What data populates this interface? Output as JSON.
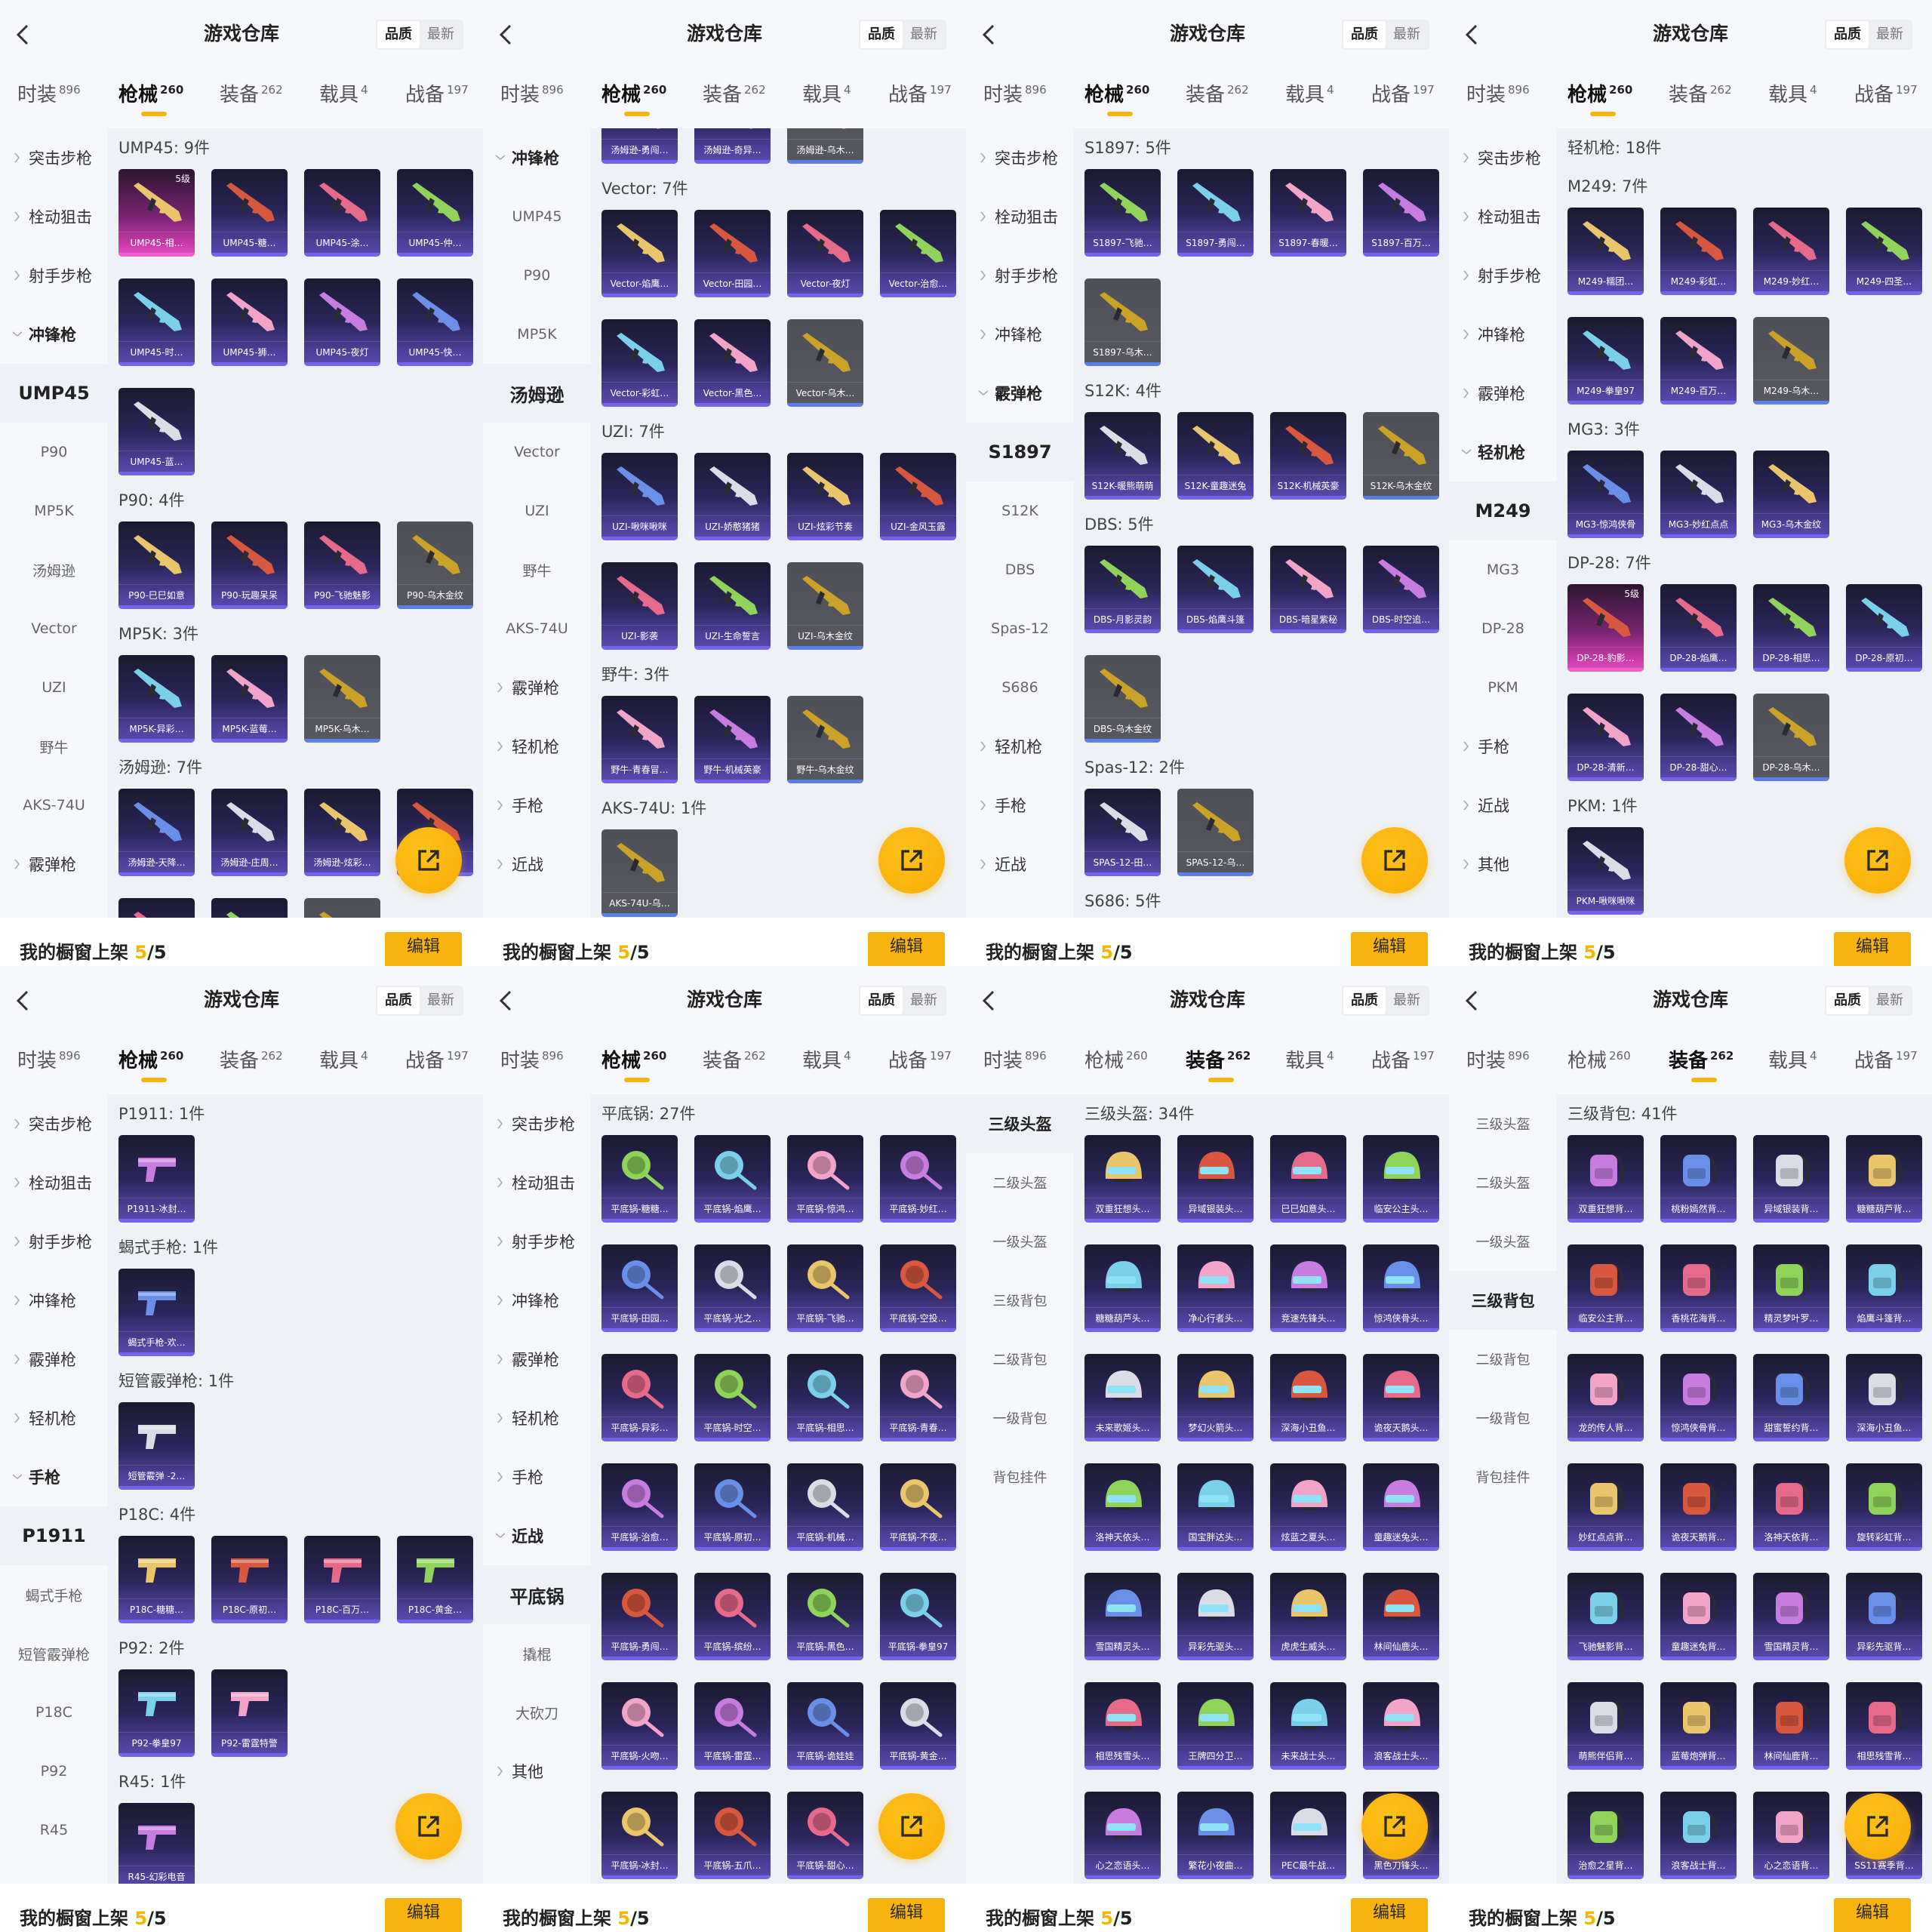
{
  "app": {
    "title": "游戏仓库",
    "sort_options": [
      "品质",
      "最新"
    ],
    "sort_active": 0,
    "tabs": [
      {
        "label": "时装",
        "count": "896"
      },
      {
        "label": "枪械",
        "count": "260"
      },
      {
        "label": "装备",
        "count": "262"
      },
      {
        "label": "载具",
        "count": "4"
      },
      {
        "label": "战备",
        "count": "197"
      }
    ],
    "showcase": {
      "label": "我的橱窗上架 ",
      "count": "5",
      "total": "/5"
    },
    "edit_label": "编辑",
    "colors": {
      "accent": "#f8b40c",
      "card_epic": "#2a2559",
      "card_gray": "#54555d",
      "card_legendary": "#c93aa8",
      "content_bg": "#eef1f5"
    }
  },
  "panels": [
    {
      "active_tab": 1,
      "sidebar": [
        {
          "label": "突击步枪",
          "type": "group"
        },
        {
          "label": "栓动狙击",
          "type": "group"
        },
        {
          "label": "射手步枪",
          "type": "group"
        },
        {
          "label": "冲锋枪",
          "type": "open"
        },
        {
          "label": "UMP45",
          "type": "selected"
        },
        {
          "label": "P90"
        },
        {
          "label": "MP5K"
        },
        {
          "label": "汤姆逊"
        },
        {
          "label": "Vector"
        },
        {
          "label": "UZI"
        },
        {
          "label": "野牛"
        },
        {
          "label": "AKS-74U"
        },
        {
          "label": "霰弹枪",
          "type": "group"
        }
      ],
      "icon": "gun-icon",
      "sections": [
        {
          "title": "UMP45: 9件",
          "items": [
            {
              "name": "UMP45-相…",
              "tier": "legendary",
              "grade": "5级"
            },
            "UMP45-糖…",
            "UMP45-涂…",
            "UMP45-仲…",
            "UMP45-时…",
            "UMP45-狮…",
            "UMP45-夜灯",
            "UMP45-快…",
            "UMP45-蓝…"
          ]
        },
        {
          "title": "P90: 4件",
          "items": [
            "P90-巳巳如意",
            "P90-玩趣呆呆",
            "P90-飞驰魅影",
            {
              "name": "P90-乌木金纹",
              "tier": "gray"
            }
          ]
        },
        {
          "title": "MP5K: 3件",
          "items": [
            "MP5K-异彩…",
            "MP5K-蓝莓…",
            {
              "name": "MP5K-乌木…",
              "tier": "gray"
            }
          ]
        },
        {
          "title": "汤姆逊: 7件",
          "items": [
            "汤姆逊-天降…",
            "汤姆逊-庄周…",
            "汤姆逊-炫彩…",
            "",
            "",
            "",
            {
              "name": "",
              "tier": "gray"
            }
          ]
        }
      ]
    },
    {
      "active_tab": 1,
      "sidebar": [
        {
          "label": "冲锋枪",
          "type": "open"
        },
        {
          "label": "UMP45"
        },
        {
          "label": "P90"
        },
        {
          "label": "MP5K"
        },
        {
          "label": "汤姆逊",
          "type": "selected"
        },
        {
          "label": "Vector"
        },
        {
          "label": "UZI"
        },
        {
          "label": "野牛"
        },
        {
          "label": "AKS-74U"
        },
        {
          "label": "霰弹枪",
          "type": "group"
        },
        {
          "label": "轻机枪",
          "type": "group"
        },
        {
          "label": "手枪",
          "type": "group"
        },
        {
          "label": "近战",
          "type": "group"
        }
      ],
      "icon": "gun-icon",
      "sections": [
        {
          "items": [
            "汤姆逊-勇闯…",
            "汤姆逊-奇异…",
            {
              "name": "汤姆逊-乌木…",
              "tier": "gray"
            }
          ]
        },
        {
          "title": "Vector: 7件",
          "items": [
            "Vector-焰鹰…",
            "Vector-田园…",
            "Vector-夜灯",
            "Vector-治愈…",
            "Vector-彩虹…",
            "Vector-黑色…",
            {
              "name": "Vector-乌木…",
              "tier": "gray"
            }
          ]
        },
        {
          "title": "UZI: 7件",
          "items": [
            "UZI-啾咪啾咪",
            "UZI-娇憨猪猪",
            "UZI-炫彩节奏",
            "UZI-金风玉露",
            "UZI-影袭",
            "UZI-生命誓言",
            {
              "name": "UZI-乌木金纹",
              "tier": "gray"
            }
          ]
        },
        {
          "title": "野牛: 3件",
          "items": [
            "野牛-青春冒…",
            "野牛-机械英豪",
            {
              "name": "野牛-乌木金纹",
              "tier": "gray"
            }
          ]
        },
        {
          "title": "AKS-74U: 1件",
          "items": [
            {
              "name": "AKS-74U-乌…",
              "tier": "gray"
            }
          ]
        }
      ]
    },
    {
      "active_tab": 1,
      "sidebar": [
        {
          "label": "突击步枪",
          "type": "group"
        },
        {
          "label": "栓动狙击",
          "type": "group"
        },
        {
          "label": "射手步枪",
          "type": "group"
        },
        {
          "label": "冲锋枪",
          "type": "group"
        },
        {
          "label": "霰弹枪",
          "type": "open"
        },
        {
          "label": "S1897",
          "type": "selected"
        },
        {
          "label": "S12K"
        },
        {
          "label": "DBS"
        },
        {
          "label": "Spas-12"
        },
        {
          "label": "S686"
        },
        {
          "label": "轻机枪",
          "type": "group"
        },
        {
          "label": "手枪",
          "type": "group"
        },
        {
          "label": "近战",
          "type": "group"
        }
      ],
      "icon": "gun-icon",
      "sections": [
        {
          "title": "S1897: 5件",
          "items": [
            "S1897-飞驰…",
            "S1897-勇闯…",
            "S1897-春暖…",
            "S1897-百万…",
            {
              "name": "S1897-乌木…",
              "tier": "gray"
            }
          ]
        },
        {
          "title": "S12K: 4件",
          "items": [
            "S12K-暖熊萌萌",
            "S12K-童趣迷兔",
            "S12K-机械英豪",
            {
              "name": "S12K-乌木金纹",
              "tier": "gray"
            }
          ]
        },
        {
          "title": "DBS: 5件",
          "items": [
            "DBS-月影灵韵",
            "DBS-焰鹰斗篷",
            "DBS-暗星紫秘",
            "DBS-时空追…",
            {
              "name": "DBS-乌木金纹",
              "tier": "gray"
            }
          ]
        },
        {
          "title": "Spas-12: 2件",
          "items": [
            "SPAS-12-田…",
            {
              "name": "SPAS-12-乌…",
              "tier": "gray"
            }
          ]
        },
        {
          "title": "S686: 5件",
          "items": []
        }
      ]
    },
    {
      "active_tab": 1,
      "sidebar": [
        {
          "label": "突击步枪",
          "type": "group"
        },
        {
          "label": "栓动狙击",
          "type": "group"
        },
        {
          "label": "射手步枪",
          "type": "group"
        },
        {
          "label": "冲锋枪",
          "type": "group"
        },
        {
          "label": "霰弹枪",
          "type": "group"
        },
        {
          "label": "轻机枪",
          "type": "open"
        },
        {
          "label": "M249",
          "type": "selected"
        },
        {
          "label": "MG3"
        },
        {
          "label": "DP-28"
        },
        {
          "label": "PKM"
        },
        {
          "label": "手枪",
          "type": "group"
        },
        {
          "label": "近战",
          "type": "group"
        },
        {
          "label": "其他",
          "type": "group"
        }
      ],
      "icon": "gun-icon",
      "sections": [
        {
          "title": "轻机枪: 18件",
          "group": true
        },
        {
          "title": "M249: 7件",
          "items": [
            "M249-糯团…",
            "M249-彩虹…",
            "M249-妙红…",
            "M249-四圣…",
            "M249-拳皇97",
            "M249-百万…",
            {
              "name": "M249-乌木…",
              "tier": "gray"
            }
          ]
        },
        {
          "title": "MG3: 3件",
          "items": [
            "MG3-惊鸿侠骨",
            "MG3-妙红点点",
            "MG3-乌木金纹"
          ]
        },
        {
          "title": "DP-28: 7件",
          "items": [
            {
              "name": "DP-28-豹影…",
              "tier": "legendary",
              "grade": "5级"
            },
            "DP-28-焰鹰…",
            "DP-28-相思…",
            "DP-28-原初…",
            "DP-28-清新…",
            "DP-28-甜心…",
            {
              "name": "DP-28-乌木…",
              "tier": "gray"
            }
          ]
        },
        {
          "title": "PKM: 1件",
          "items": [
            "PKM-啾咪啾咪"
          ]
        }
      ]
    },
    {
      "active_tab": 1,
      "sidebar": [
        {
          "label": "突击步枪",
          "type": "group"
        },
        {
          "label": "栓动狙击",
          "type": "group"
        },
        {
          "label": "射手步枪",
          "type": "group"
        },
        {
          "label": "冲锋枪",
          "type": "group"
        },
        {
          "label": "霰弹枪",
          "type": "group"
        },
        {
          "label": "轻机枪",
          "type": "group"
        },
        {
          "label": "手枪",
          "type": "open"
        },
        {
          "label": "P1911",
          "type": "selected"
        },
        {
          "label": "蝎式手枪"
        },
        {
          "label": "短管霰弹枪"
        },
        {
          "label": "P18C"
        },
        {
          "label": "P92"
        },
        {
          "label": "R45"
        }
      ],
      "icon": "pistol-icon",
      "sections": [
        {
          "title": "P1911: 1件",
          "items": [
            "P1911-冰封…"
          ]
        },
        {
          "title": "蝎式手枪: 1件",
          "items": [
            "蝎式手枪-欢…"
          ]
        },
        {
          "title": "短管霰弹枪: 1件",
          "items": [
            "短管霰弹 -2…"
          ]
        },
        {
          "title": "P18C: 4件",
          "items": [
            "P18C-糖糖…",
            "P18C-原初…",
            "P18C-百万…",
            "P18C-黄金…"
          ]
        },
        {
          "title": "P92: 2件",
          "items": [
            "P92-拳皇97",
            "P92-雷霆特警"
          ]
        },
        {
          "title": "R45: 1件",
          "items": [
            "R45-幻彩电音"
          ]
        }
      ]
    },
    {
      "active_tab": 1,
      "sidebar": [
        {
          "label": "突击步枪",
          "type": "group"
        },
        {
          "label": "栓动狙击",
          "type": "group"
        },
        {
          "label": "射手步枪",
          "type": "group"
        },
        {
          "label": "冲锋枪",
          "type": "group"
        },
        {
          "label": "霰弹枪",
          "type": "group"
        },
        {
          "label": "轻机枪",
          "type": "group"
        },
        {
          "label": "手枪",
          "type": "group"
        },
        {
          "label": "近战",
          "type": "open"
        },
        {
          "label": "平底锅",
          "type": "selected"
        },
        {
          "label": "撬棍"
        },
        {
          "label": "大砍刀"
        },
        {
          "label": "其他",
          "type": "group"
        }
      ],
      "icon": "pan-icon",
      "sections": [
        {
          "title": "平底锅: 27件",
          "items": [
            "平底锅-糖糖…",
            "平底锅-焰鹰…",
            "平底锅-惊鸿…",
            "平底锅-妙红…",
            "平底锅-田园…",
            "平底锅-光之…",
            "平底锅-飞驰…",
            "平底锅-空投…",
            "平底锅-异彩…",
            "平底锅-时空…",
            "平底锅-相思…",
            "平底锅-青春…",
            "平底锅-治愈…",
            "平底锅-原初…",
            "平底锅-机械…",
            "平底锅-不夜…",
            "平底锅-勇闯…",
            "平底锅-缤纷…",
            "平底锅-黑色…",
            "平底锅-拳皇97",
            "平底锅-火吻…",
            "平底锅-雷霆…",
            "平底锅-诡娃娃",
            "平底锅-黄金…",
            "平底锅-冰封…",
            "平底锅-五爪…",
            "平底锅-甜心…"
          ]
        }
      ]
    },
    {
      "active_tab": 2,
      "equipment": true,
      "sidebar": [
        {
          "label": "三级头盔",
          "type": "selected"
        },
        {
          "label": "二级头盔"
        },
        {
          "label": "一级头盔"
        },
        {
          "label": "三级背包"
        },
        {
          "label": "二级背包"
        },
        {
          "label": "一级背包"
        },
        {
          "label": "背包挂件"
        }
      ],
      "icon": "helmet-icon",
      "sections": [
        {
          "title": "三级头盔: 34件",
          "items": [
            "双重狂想头…",
            "异域银装头…",
            "巳巳如意头…",
            "临安公主头…",
            "糖糖葫芦头…",
            "净心行者头…",
            "竞速先锋头…",
            "惊鸿侠骨头…",
            "未来歌姬头…",
            "梦幻火箭头…",
            "深海小丑鱼…",
            "诡夜天鹅头…",
            "洛神天依头…",
            "国宝胖达头…",
            "炫蓝之夏头…",
            "童趣迷兔头…",
            "雪国精灵头…",
            "异彩先驱头…",
            "虎虎生威头…",
            "林间仙鹿头…",
            "相思残雪头…",
            "王牌四分卫…",
            "未来战士头…",
            "浪客战士头…",
            "心之恋语头…",
            "繁花小夜曲…",
            "PEC最牛战…",
            "黑色刀锋头…"
          ]
        }
      ]
    },
    {
      "active_tab": 2,
      "equipment": true,
      "sidebar": [
        {
          "label": "三级头盔"
        },
        {
          "label": "二级头盔"
        },
        {
          "label": "一级头盔"
        },
        {
          "label": "三级背包",
          "type": "selected"
        },
        {
          "label": "二级背包"
        },
        {
          "label": "一级背包"
        },
        {
          "label": "背包挂件"
        }
      ],
      "icon": "backpack-icon",
      "sections": [
        {
          "title": "三级背包: 41件",
          "items": [
            "双重狂想背…",
            "桃粉嫣然背…",
            "异域银装背…",
            "糖糖葫芦背…",
            "临安公主背…",
            "香桃花海背…",
            "精灵梦叶罗…",
            "焰鹰斗篷背…",
            "龙的传人背…",
            "惊鸿侠骨背…",
            "甜蜜誓约背…",
            "深海小丑鱼…",
            "妙红点点背…",
            "诡夜天鹅背…",
            "洛神天依背…",
            "旋转彩虹背…",
            "飞驰魅影背…",
            "童趣迷兔背…",
            "雪国精灵背…",
            "异彩先驱背…",
            "萌熊伴侣背…",
            "蓝莓炮弹背…",
            "林间仙鹿背…",
            "相思残雪背…",
            "治愈之星背…",
            "浪客战士背…",
            "心之恋语背…",
            "SS11赛季背…"
          ]
        }
      ]
    }
  ]
}
